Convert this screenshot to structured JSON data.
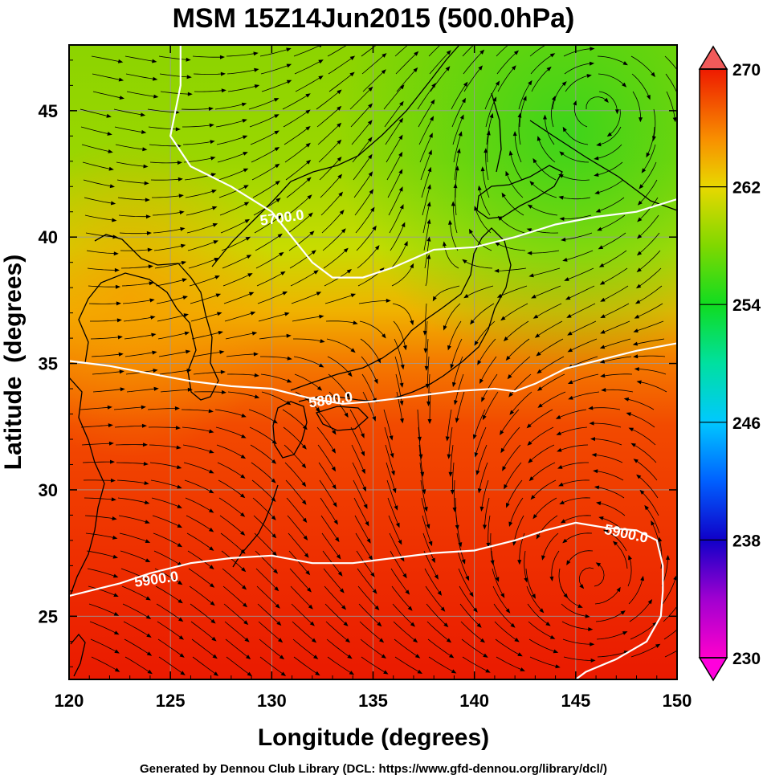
{
  "chart_data": {
    "type": "heatmap",
    "title": "MSM 15Z14Jun2015 (500.0hPa)",
    "xlabel": "Longitude (degrees)",
    "ylabel": "Latitude  (degrees)",
    "xlim": [
      120,
      150
    ],
    "ylim": [
      22.5,
      47.6
    ],
    "x_ticks": [
      120,
      125,
      130,
      135,
      140,
      145,
      150
    ],
    "y_ticks": [
      25,
      30,
      35,
      40,
      45
    ],
    "colorbar": {
      "min": 230,
      "max": 270,
      "tick_values": [
        230,
        238,
        246,
        254,
        262,
        270
      ],
      "tick_labels": [
        "230",
        "238",
        "246",
        "254",
        "262",
        "270"
      ],
      "extend": "both"
    },
    "contours": [
      {
        "label": "5700.0",
        "label_at": [
          130.5,
          40.8
        ],
        "points": [
          [
            125.5,
            47.6
          ],
          [
            125.5,
            46.0
          ],
          [
            125.0,
            44.0
          ],
          [
            126.0,
            42.8
          ],
          [
            128.0,
            42.0
          ],
          [
            130.0,
            41.0
          ],
          [
            131.0,
            40.0
          ],
          [
            132.0,
            39.0
          ],
          [
            133.0,
            38.4
          ],
          [
            134.5,
            38.4
          ],
          [
            136.0,
            38.8
          ],
          [
            138.0,
            39.5
          ],
          [
            140.0,
            39.6
          ],
          [
            142.0,
            40.0
          ],
          [
            144.0,
            40.5
          ],
          [
            146.0,
            40.8
          ],
          [
            148.0,
            41.0
          ],
          [
            150.0,
            41.5
          ]
        ]
      },
      {
        "label": "5800.0",
        "label_at": [
          132.9,
          33.6
        ],
        "points": [
          [
            120.0,
            35.1
          ],
          [
            122.0,
            34.9
          ],
          [
            124.0,
            34.6
          ],
          [
            126.0,
            34.3
          ],
          [
            128.0,
            34.1
          ],
          [
            130.0,
            34.0
          ],
          [
            131.0,
            33.8
          ],
          [
            132.0,
            33.6
          ],
          [
            133.5,
            33.4
          ],
          [
            135.0,
            33.5
          ],
          [
            137.0,
            33.7
          ],
          [
            139.0,
            33.9
          ],
          [
            141.0,
            34.0
          ],
          [
            142.0,
            33.9
          ],
          [
            143.0,
            34.2
          ],
          [
            144.5,
            34.8
          ],
          [
            146.0,
            35.1
          ],
          [
            148.0,
            35.5
          ],
          [
            150.0,
            35.8
          ]
        ]
      },
      {
        "label": "5900.0",
        "label_at": [
          124.3,
          26.5
        ],
        "label2": "5900.0",
        "label2_at": [
          147.5,
          28.3
        ],
        "points": [
          [
            120.0,
            25.8
          ],
          [
            121.0,
            26.0
          ],
          [
            122.5,
            26.3
          ],
          [
            124.0,
            26.7
          ],
          [
            126.0,
            27.1
          ],
          [
            128.0,
            27.3
          ],
          [
            130.0,
            27.4
          ],
          [
            132.0,
            27.1
          ],
          [
            134.0,
            27.1
          ],
          [
            136.0,
            27.3
          ],
          [
            138.0,
            27.5
          ],
          [
            140.0,
            27.6
          ],
          [
            142.0,
            28.0
          ],
          [
            143.5,
            28.4
          ],
          [
            145.0,
            28.7
          ],
          [
            146.5,
            28.5
          ],
          [
            148.0,
            28.4
          ],
          [
            149.0,
            28.0
          ],
          [
            149.3,
            27.0
          ],
          [
            149.3,
            26.0
          ],
          [
            149.2,
            25.0
          ],
          [
            148.5,
            24.0
          ],
          [
            147.0,
            23.3
          ],
          [
            145.5,
            22.8
          ],
          [
            145.0,
            22.5
          ]
        ]
      }
    ],
    "vortex_centers": [
      [
        146.0,
        45.1
      ],
      [
        145.8,
        26.5
      ]
    ],
    "grid": true
  },
  "footer": "Generated by Dennou Club Library (DCL: https://www.gfd-dennou.org/library/dcl/)"
}
